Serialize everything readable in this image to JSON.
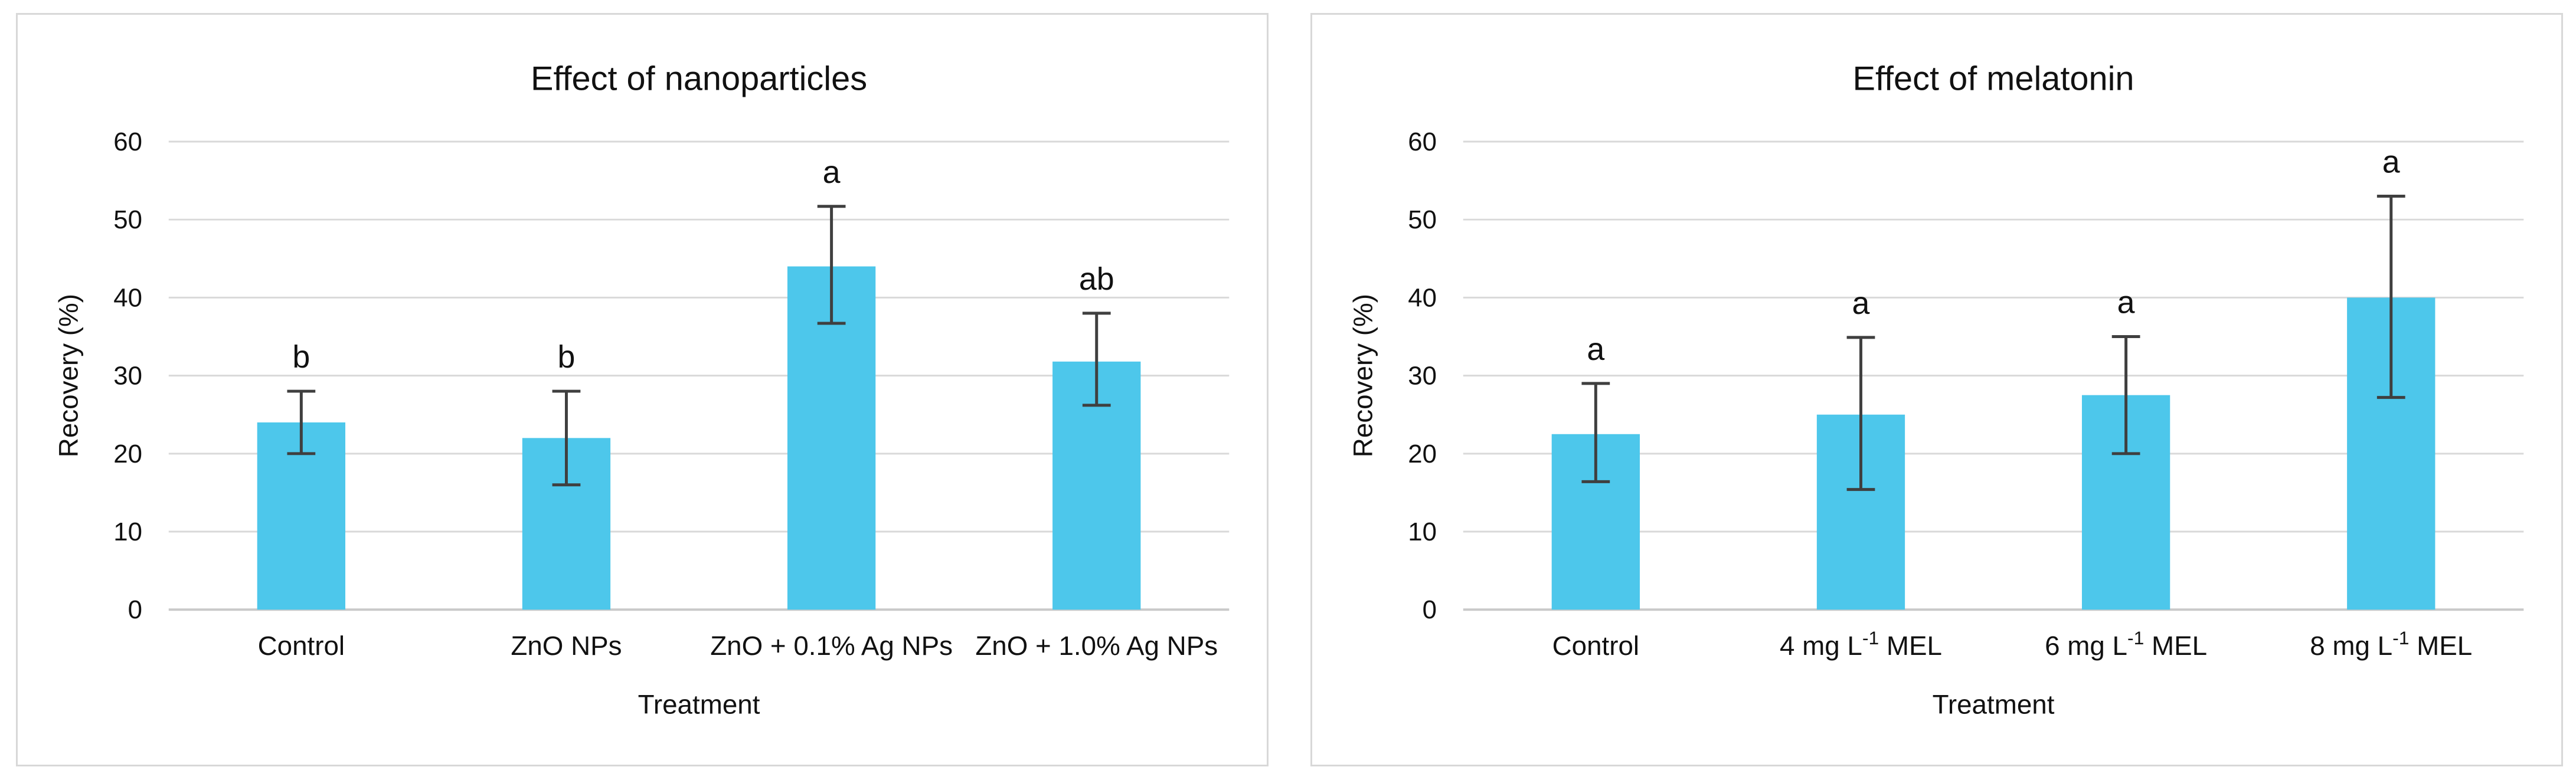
{
  "page": {
    "background": "#ffffff"
  },
  "style": {
    "bar_fill": "#4dc7eb",
    "error_bar_color": "#3f3f3f",
    "gridline_color": "#d9d9d9",
    "axis_line_color": "#c9c9c9",
    "panel_border_color": "#d8d8d8",
    "text_color": "#111111"
  },
  "chart_data": [
    {
      "type": "bar",
      "title": "Effect of nanoparticles",
      "xlabel": "Treatment",
      "ylabel": "Recovery (%)",
      "ylim": [
        0,
        60
      ],
      "yticks": [
        0,
        10,
        20,
        30,
        40,
        50,
        60
      ],
      "grid": "horizontal",
      "legend": "none",
      "categories": [
        "Control",
        "ZnO NPs",
        "ZnO + 0.1% Ag NPs",
        "ZnO + 1.0% Ag NPs"
      ],
      "category_parts": [
        {
          "pre": "Control",
          "sup": "",
          "post": ""
        },
        {
          "pre": "ZnO NPs",
          "sup": "",
          "post": ""
        },
        {
          "pre": "ZnO + 0.1% Ag NPs",
          "sup": "",
          "post": ""
        },
        {
          "pre": "ZnO + 1.0% Ag NPs",
          "sup": "",
          "post": ""
        }
      ],
      "values": [
        24,
        22,
        44,
        31.8
      ],
      "error_low": [
        20,
        16,
        36.7,
        26.2
      ],
      "error_high": [
        28,
        28,
        51.7,
        38
      ],
      "significance_letters": [
        "b",
        "b",
        "a",
        "ab"
      ]
    },
    {
      "type": "bar",
      "title": "Effect of melatonin",
      "xlabel": "Treatment",
      "ylabel": "Recovery (%)",
      "ylim": [
        0,
        60
      ],
      "yticks": [
        0,
        10,
        20,
        30,
        40,
        50,
        60
      ],
      "grid": "horizontal",
      "legend": "none",
      "categories": [
        "Control",
        "4 mg L⁻¹ MEL",
        "6 mg L⁻¹ MEL",
        "8 mg L⁻¹ MEL"
      ],
      "category_parts": [
        {
          "pre": "Control",
          "sup": "",
          "post": ""
        },
        {
          "pre": "4 mg L",
          "sup": "-1",
          "post": " MEL"
        },
        {
          "pre": "6 mg L",
          "sup": "-1",
          "post": " MEL"
        },
        {
          "pre": "8 mg L",
          "sup": "-1",
          "post": " MEL"
        }
      ],
      "values": [
        22.5,
        25,
        27.5,
        40
      ],
      "error_low": [
        16.4,
        15.4,
        20,
        27.2
      ],
      "error_high": [
        29,
        34.9,
        35,
        53
      ],
      "significance_letters": [
        "a",
        "a",
        "a",
        "a"
      ]
    }
  ]
}
